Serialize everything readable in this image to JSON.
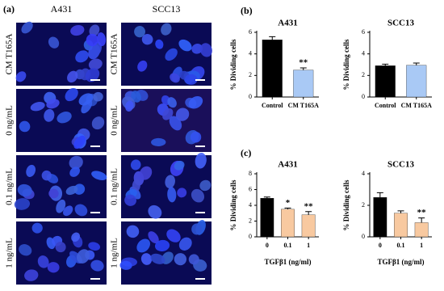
{
  "panel_a": {
    "label": "(a)",
    "columns": [
      "A431",
      "SCC13"
    ],
    "rows": [
      "CM T165A",
      "0 ng/mL",
      "0.1 ng/mL",
      "1 ng/mL"
    ]
  },
  "panel_labels": [
    "(b)",
    "(c)"
  ],
  "chart_data": [
    {
      "type": "bar",
      "title": "A431",
      "ylabel": "% Dividing cells",
      "categories": [
        "Control",
        "CM T165A"
      ],
      "values": [
        5.3,
        2.5
      ],
      "errors": [
        0.3,
        0.2
      ],
      "colors": [
        "#000000",
        "#a9c9f5"
      ],
      "annotations": [
        null,
        "**"
      ],
      "ylim": [
        0,
        6
      ],
      "yticks": [
        0,
        2,
        4,
        6
      ]
    },
    {
      "type": "bar",
      "title": "SCC13",
      "ylabel": "% Dividing cells",
      "categories": [
        "Control",
        "CM T165A"
      ],
      "values": [
        2.9,
        2.95
      ],
      "errors": [
        0.15,
        0.2
      ],
      "colors": [
        "#000000",
        "#a9c9f5"
      ],
      "annotations": [
        null,
        null
      ],
      "ylim": [
        0,
        6
      ],
      "yticks": [
        0,
        2,
        4,
        6
      ]
    },
    {
      "type": "bar",
      "title": "A431",
      "ylabel": "% Dividing cells",
      "xlabel": "TGFβ1 (ng/ml)",
      "categories": [
        "0",
        "0.1",
        "1"
      ],
      "values": [
        4.9,
        3.5,
        2.8
      ],
      "errors": [
        0.15,
        0.15,
        0.4
      ],
      "colors": [
        "#000000",
        "#f8c9a0",
        "#f8c9a0"
      ],
      "annotations": [
        null,
        "*",
        "**"
      ],
      "ylim": [
        0,
        8
      ],
      "yticks": [
        0,
        2,
        4,
        6,
        8
      ]
    },
    {
      "type": "bar",
      "title": "SCC13",
      "ylabel": "% Dividing cells",
      "xlabel": "TGFβ1 (ng/ml)",
      "categories": [
        "0",
        "0.1",
        "1"
      ],
      "values": [
        2.5,
        1.5,
        0.9
      ],
      "errors": [
        0.3,
        0.15,
        0.3
      ],
      "colors": [
        "#000000",
        "#f8c9a0",
        "#f8c9a0"
      ],
      "annotations": [
        null,
        null,
        "**"
      ],
      "ylim": [
        0,
        4
      ],
      "yticks": [
        0,
        2,
        4
      ]
    }
  ]
}
